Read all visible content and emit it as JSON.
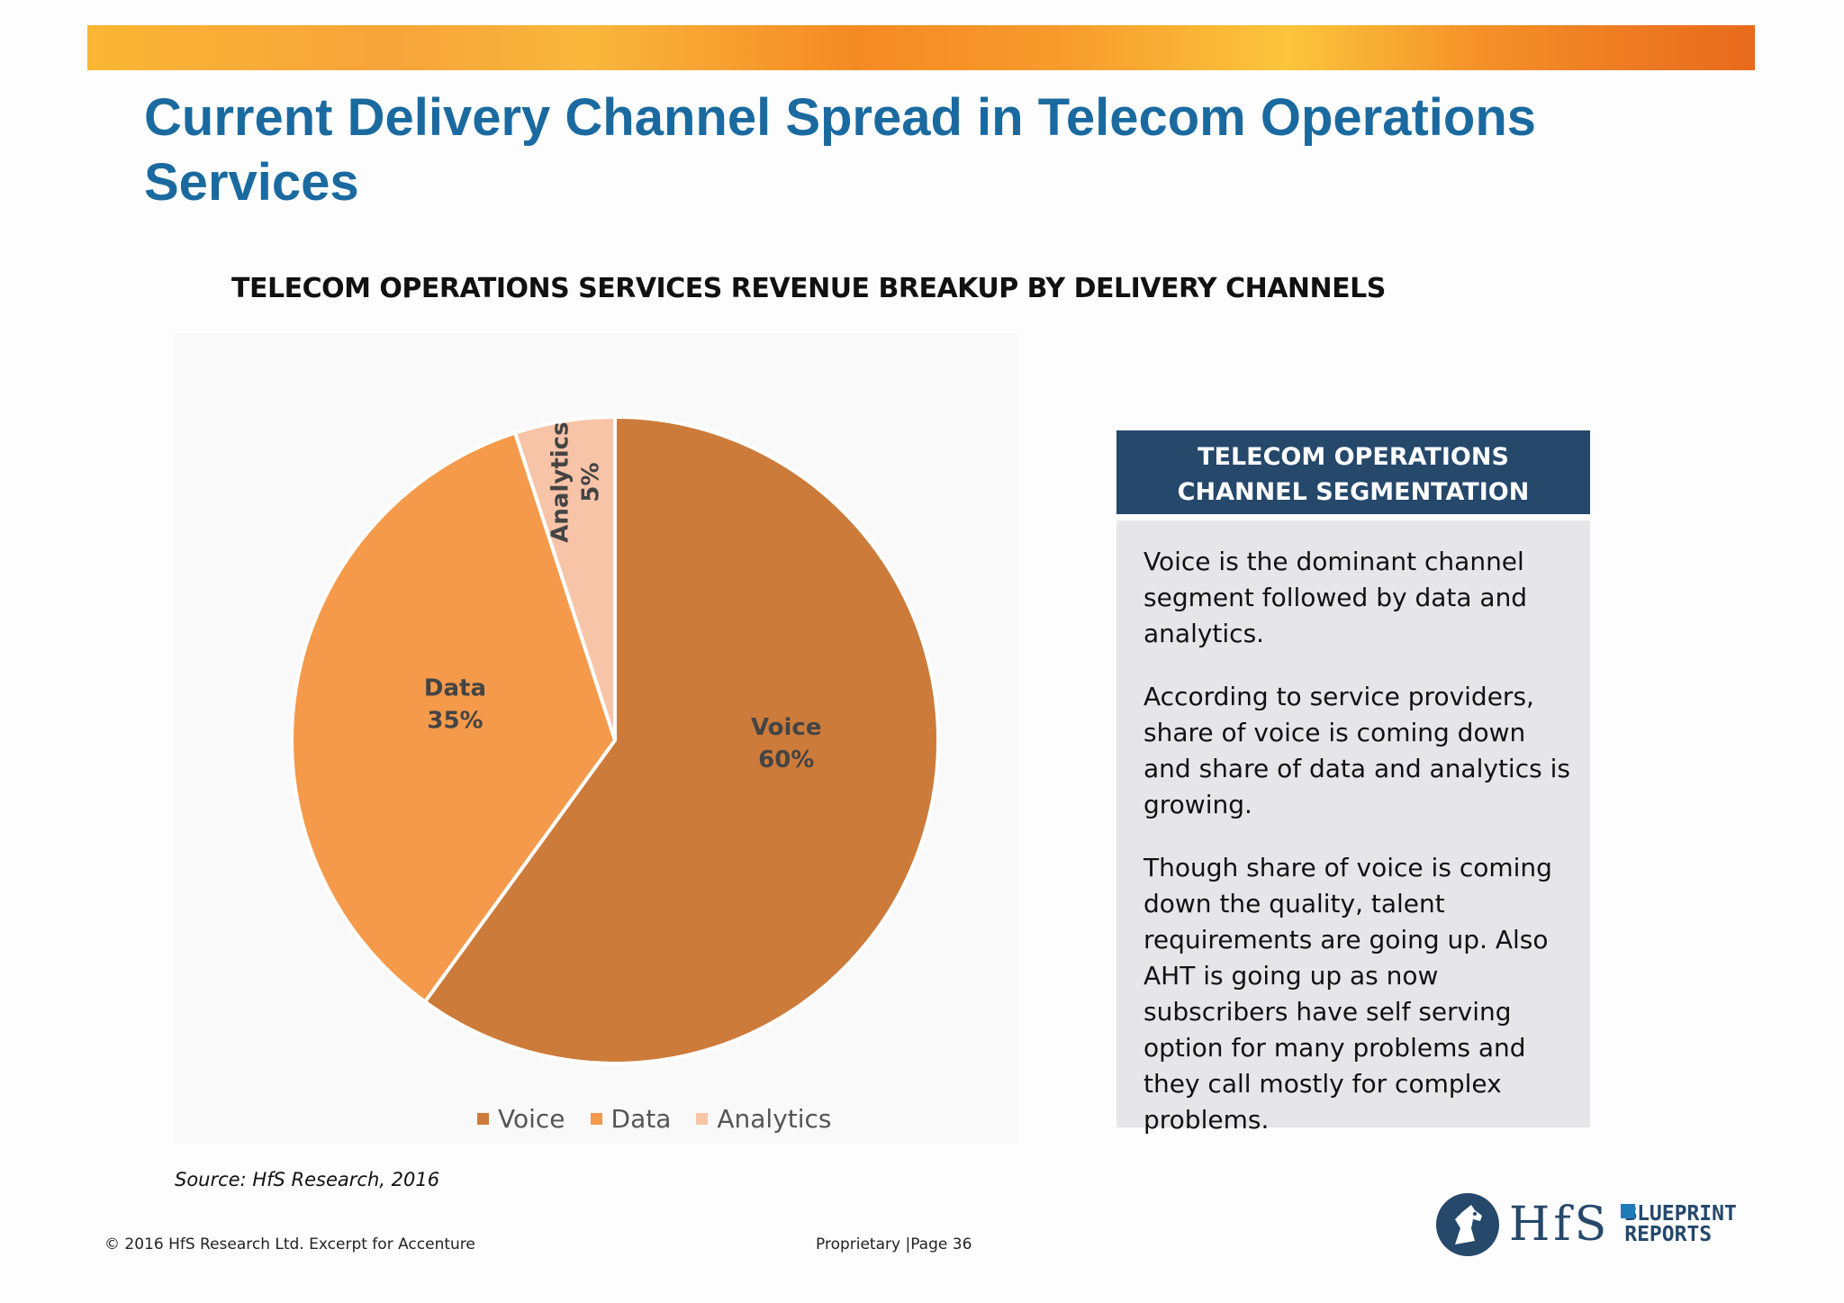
{
  "slide": {
    "title": "Current Delivery Channel Spread in Telecom Operations Services"
  },
  "chart_data": {
    "type": "pie",
    "title": "TELECOM OPERATIONS SERVICES REVENUE BREAKUP BY DELIVERY CHANNELS",
    "categories": [
      "Voice",
      "Data",
      "Analytics"
    ],
    "values": [
      60,
      35,
      5
    ],
    "value_labels": [
      "60%",
      "35%",
      "5%"
    ],
    "colors": [
      "#cd7b3a",
      "#f49a4a",
      "#f8c4a8"
    ],
    "legend_position": "bottom",
    "legend": [
      "Voice",
      "Data",
      "Analytics"
    ]
  },
  "side_box": {
    "header_line1": "TELECOM OPERATIONS",
    "header_line2": "CHANNEL SEGMENTATION",
    "paragraphs": [
      "Voice  is the dominant channel segment followed by data and analytics.",
      "According to service providers, share of voice is coming down and share of data and analytics is growing.",
      "Though share of voice is coming down the quality, talent requirements are going up. Also AHT is going up as now subscribers have self serving option for many problems and they call mostly for complex problems."
    ]
  },
  "source": "Source: HfS Research, 2016",
  "footer": {
    "copyright": "© 2016 HfS Research Ltd.   Excerpt  for Accenture",
    "page": "Proprietary  |Page 36"
  },
  "logo": {
    "brand": "HfS",
    "line1": "BLUEPRINT",
    "line2": "REPORTS",
    "icon": "horse-head-icon"
  }
}
